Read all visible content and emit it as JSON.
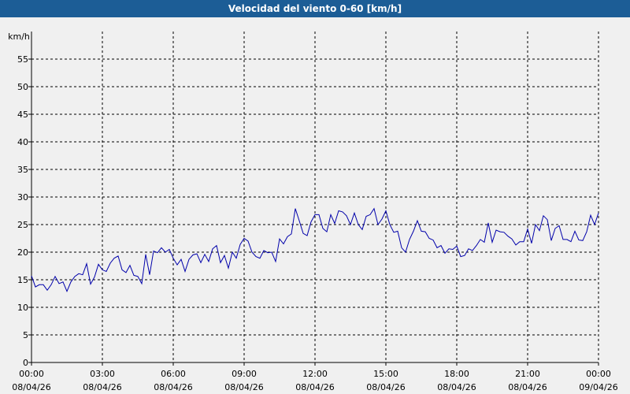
{
  "title": "Velocidad del viento 0-60 [km/h]",
  "colors": {
    "header_bg": "#1c5d96",
    "header_text": "#ffffff",
    "series": "#0000aa",
    "grid": "#000000",
    "background": "#f0f0f0"
  },
  "chart_data": {
    "type": "line",
    "title": "Velocidad del viento 0-60 [km/h]",
    "ylabel": "km/h",
    "xlabel": "",
    "ylim": [
      0,
      60
    ],
    "yticks": [
      0,
      5,
      10,
      15,
      20,
      25,
      30,
      35,
      40,
      45,
      50,
      55
    ],
    "xlim": [
      "08/04/26 00:00",
      "09/04/26 00:00"
    ],
    "grid": true,
    "x_tick_labels": [
      {
        "time": "00:00",
        "date": "08/04/26"
      },
      {
        "time": "03:00",
        "date": "08/04/26"
      },
      {
        "time": "06:00",
        "date": "08/04/26"
      },
      {
        "time": "09:00",
        "date": "08/04/26"
      },
      {
        "time": "12:00",
        "date": "08/04/26"
      },
      {
        "time": "15:00",
        "date": "08/04/26"
      },
      {
        "time": "18:00",
        "date": "08/04/26"
      },
      {
        "time": "21:00",
        "date": "08/04/26"
      },
      {
        "time": "00:00",
        "date": "09/04/26"
      }
    ],
    "series": [
      {
        "x": [
          "00:00",
          "00:10",
          "00:20",
          "00:30",
          "00:40",
          "00:50",
          "01:00",
          "01:10",
          "01:20",
          "01:30",
          "01:40",
          "01:50",
          "02:00",
          "02:10",
          "02:20",
          "02:30",
          "02:40",
          "02:50",
          "03:00",
          "03:10",
          "03:20",
          "03:30",
          "03:40",
          "03:50",
          "04:00",
          "04:10",
          "04:20",
          "04:30",
          "04:40",
          "04:50",
          "05:00",
          "05:10",
          "05:20",
          "05:30",
          "05:40",
          "05:50",
          "06:00",
          "06:10",
          "06:20",
          "06:30",
          "06:40",
          "06:50",
          "07:00",
          "07:10",
          "07:20",
          "07:30",
          "07:40",
          "07:50",
          "08:00",
          "08:10",
          "08:20",
          "08:30",
          "08:40",
          "08:50",
          "09:00",
          "09:10",
          "09:20",
          "09:30",
          "09:40",
          "09:50",
          "10:00",
          "10:10",
          "10:20",
          "10:30",
          "10:40",
          "10:50",
          "11:00",
          "11:10",
          "11:20",
          "11:30",
          "11:40",
          "11:50",
          "12:00",
          "12:10",
          "12:20",
          "12:30",
          "12:40",
          "12:50",
          "13:00",
          "13:10",
          "13:20",
          "13:30",
          "13:40",
          "13:50",
          "14:00",
          "14:10",
          "14:20",
          "14:30",
          "14:40",
          "14:50",
          "15:00",
          "15:10",
          "15:20",
          "15:30",
          "15:40",
          "15:50",
          "16:00",
          "16:10",
          "16:20",
          "16:30",
          "16:40",
          "16:50",
          "17:00",
          "17:10",
          "17:20",
          "17:30",
          "17:40",
          "17:50",
          "18:00",
          "18:10",
          "18:20",
          "18:30",
          "18:40",
          "18:50",
          "19:00",
          "19:10",
          "19:20",
          "19:30",
          "19:40",
          "19:50",
          "20:00",
          "20:10",
          "20:20",
          "20:30",
          "20:40",
          "20:50",
          "21:00",
          "21:10",
          "21:20",
          "21:30",
          "21:40",
          "21:50",
          "22:00",
          "22:10",
          "22:20",
          "22:30",
          "22:40",
          "22:50",
          "23:00",
          "23:10",
          "23:20",
          "23:30",
          "23:40",
          "23:50",
          "24:00"
        ],
        "values": [
          15.7,
          13.7,
          14.1,
          14.1,
          13.1,
          14.1,
          15.6,
          14.3,
          14.6,
          12.9,
          14.6,
          15.6,
          16.1,
          15.9,
          17.9,
          14.2,
          15.5,
          17.8,
          16.8,
          16.5,
          18.0,
          18.9,
          19.3,
          16.8,
          16.3,
          17.6,
          15.8,
          15.6,
          14.3,
          19.6,
          15.9,
          20.2,
          19.9,
          20.8,
          20.0,
          20.5,
          18.9,
          17.7,
          18.7,
          16.5,
          18.7,
          19.5,
          19.7,
          18.1,
          19.6,
          18.3,
          20.6,
          21.2,
          18.1,
          19.4,
          17.1,
          20.0,
          18.9,
          21.4,
          22.5,
          22.0,
          20.0,
          19.2,
          18.9,
          20.3,
          19.9,
          20.0,
          18.3,
          22.4,
          21.5,
          22.8,
          23.3,
          27.9,
          25.7,
          23.4,
          23.0,
          25.5,
          26.8,
          26.8,
          24.3,
          23.7,
          26.8,
          25.2,
          27.5,
          27.3,
          26.6,
          25.0,
          27.1,
          25.0,
          24.1,
          26.5,
          26.8,
          27.9,
          25.0,
          26.0,
          27.5,
          25.0,
          23.6,
          23.8,
          20.8,
          20.0,
          22.3,
          23.8,
          25.7,
          23.8,
          23.7,
          22.5,
          22.2,
          20.8,
          21.2,
          19.8,
          20.6,
          20.5,
          21.1,
          19.2,
          19.4,
          20.6,
          20.3,
          21.2,
          22.3,
          21.8,
          25.3,
          21.8,
          24.0,
          23.7,
          23.6,
          22.9,
          22.4,
          21.3,
          21.9,
          21.9,
          24.2,
          21.6,
          25.0,
          23.9,
          26.6,
          25.9,
          22.1,
          24.3,
          24.8,
          22.3,
          22.3,
          21.9,
          23.8,
          22.2,
          22.1,
          23.7,
          26.7,
          25.0,
          27.1
        ]
      }
    ]
  }
}
